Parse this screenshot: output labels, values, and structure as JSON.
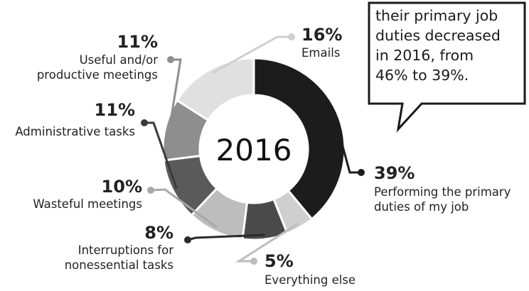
{
  "chart_data": {
    "type": "pie",
    "title": "2016",
    "center_label": "2016",
    "unit": "%",
    "colors": [
      "#1c1c1c",
      "#cfcfcf",
      "#4a4a4a",
      "#bdbdbd",
      "#5a5a5a",
      "#8e8e8e",
      "#e0e0e0"
    ],
    "slices": [
      {
        "value": 39,
        "label": "39%",
        "name_lines": [
          "Performing the primary",
          "duties of my job"
        ]
      },
      {
        "value": 5,
        "label": "5%",
        "name_lines": [
          "Everything else"
        ]
      },
      {
        "value": 8,
        "label": "8%",
        "name_lines": [
          "Interruptions for",
          "nonessential tasks"
        ]
      },
      {
        "value": 10,
        "label": "10%",
        "name_lines": [
          "Wasteful meetings"
        ]
      },
      {
        "value": 11,
        "label": "11%",
        "name_lines": [
          "Administrative tasks"
        ]
      },
      {
        "value": 11,
        "label": "11%",
        "name_lines": [
          "Useful and/or",
          "productive meetings"
        ]
      },
      {
        "value": 16,
        "label": "16%",
        "name_lines": [
          "Emails"
        ]
      }
    ]
  },
  "callout": {
    "lines": [
      "their primary job",
      "duties decreased",
      "in 2016, from",
      "46% to 39%."
    ]
  }
}
